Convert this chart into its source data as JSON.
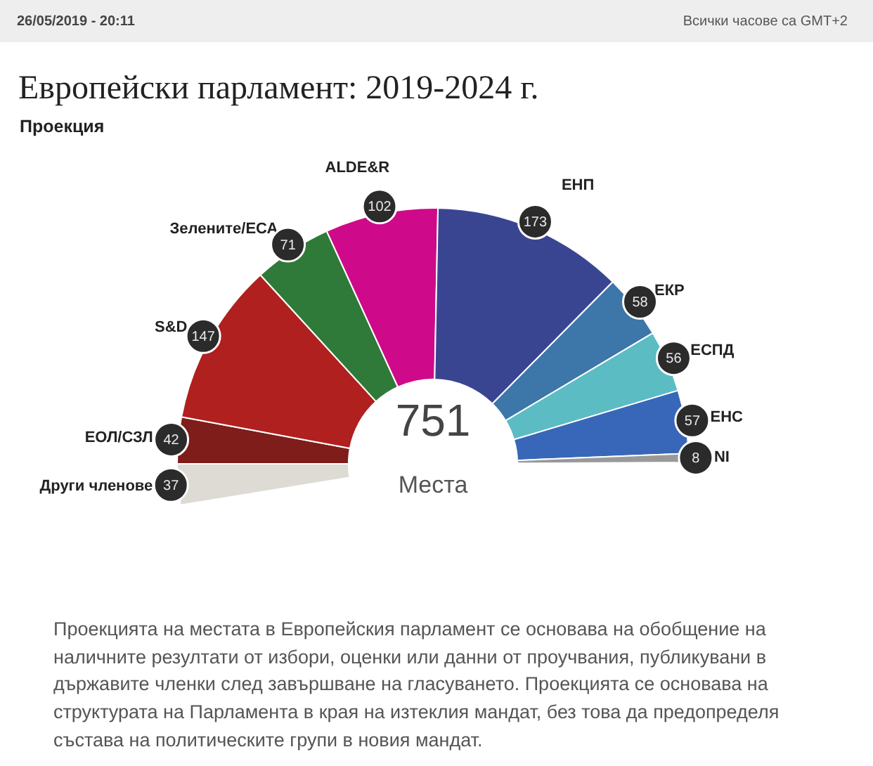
{
  "chart_data": {
    "type": "donut",
    "title": "Европейски парламент: 2019-2024 г.",
    "subtitle": "Проекция",
    "categories": [
      "Други членове",
      "ЕОЛ/СЗЛ",
      "S&D",
      "Зелените/ЕСА",
      "ALDE&R",
      "ЕНП",
      "ЕКР",
      "ЕСПД",
      "ЕНС",
      "NI"
    ],
    "values": [
      37,
      42,
      147,
      71,
      102,
      173,
      58,
      56,
      57,
      8
    ],
    "colors": [
      "#dedbd5",
      "#7f1d1a",
      "#b0201f",
      "#2f7a38",
      "#cf0a8a",
      "#3a4592",
      "#3d76a9",
      "#5bbcc4",
      "#3867b9",
      "#999999"
    ],
    "data_labels": true,
    "annotations": [
      "26/05/2019 - 20:11",
      "Всички часове са GMT+2",
      "751",
      "Места",
      "Проекцията на местата в Европейския парламент се основава на обобщение на наличните резултати от избори, оценки или данни от проучвания, публикувани в държавите членки след завършване на гласуването. Проекцията се основава на структурата на Парламента в края на изтеклия мандат, без това да предопределя състава на политическите групи в новия мандат."
    ]
  }
}
